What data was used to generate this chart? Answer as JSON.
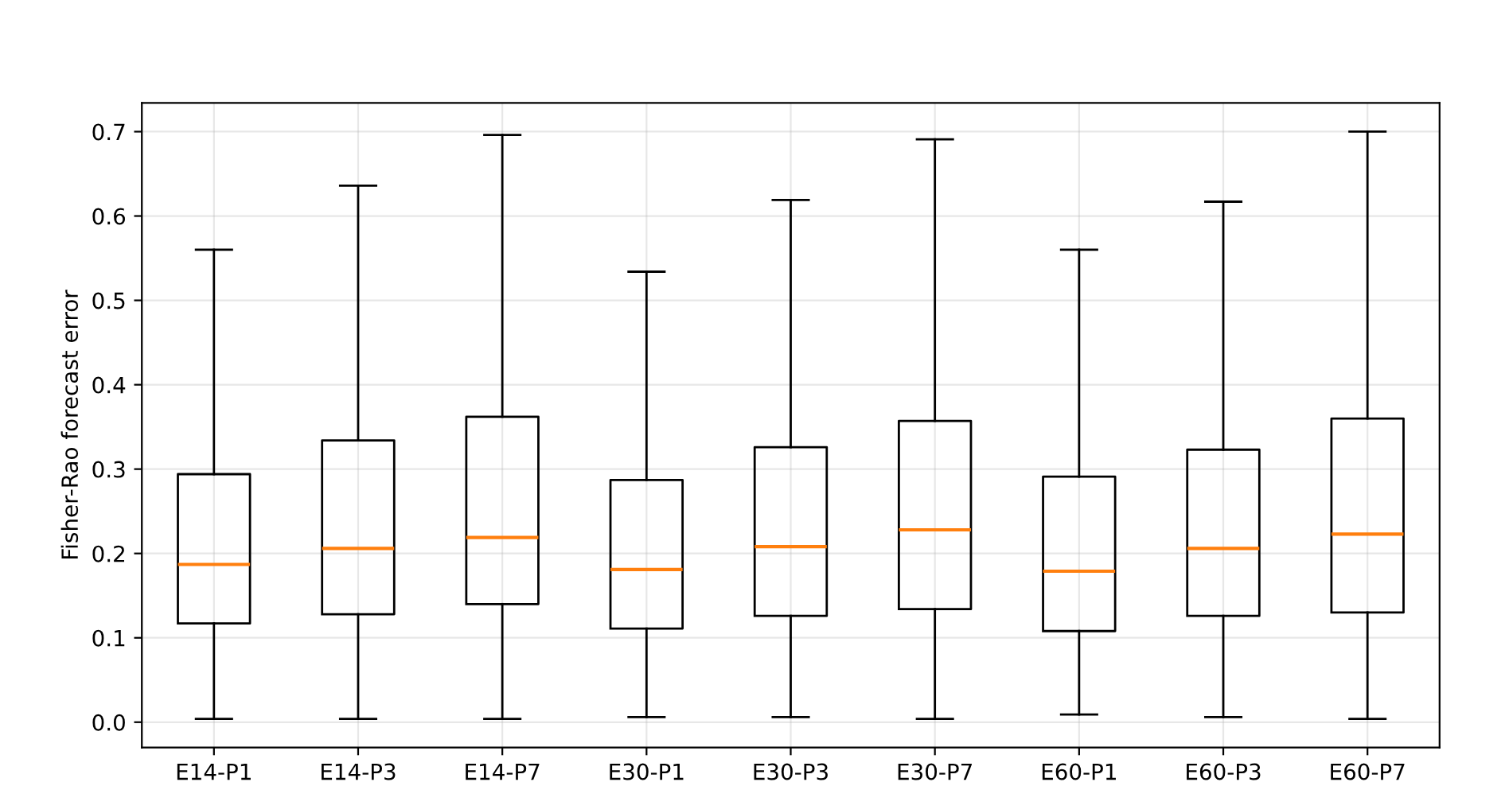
{
  "chart_data": {
    "type": "box",
    "ylabel": "Fisher-Rao forecast error",
    "categories": [
      "E14-P1",
      "E14-P3",
      "E14-P7",
      "E30-P1",
      "E30-P3",
      "E30-P7",
      "E60-P1",
      "E60-P3",
      "E60-P7"
    ],
    "boxes": [
      {
        "low": 0.004,
        "q1": 0.117,
        "median": 0.187,
        "q3": 0.294,
        "high": 0.56
      },
      {
        "low": 0.004,
        "q1": 0.128,
        "median": 0.206,
        "q3": 0.334,
        "high": 0.636
      },
      {
        "low": 0.004,
        "q1": 0.14,
        "median": 0.219,
        "q3": 0.362,
        "high": 0.696
      },
      {
        "low": 0.006,
        "q1": 0.111,
        "median": 0.181,
        "q3": 0.287,
        "high": 0.534
      },
      {
        "low": 0.006,
        "q1": 0.126,
        "median": 0.208,
        "q3": 0.326,
        "high": 0.619
      },
      {
        "low": 0.004,
        "q1": 0.134,
        "median": 0.228,
        "q3": 0.357,
        "high": 0.691
      },
      {
        "low": 0.009,
        "q1": 0.108,
        "median": 0.179,
        "q3": 0.291,
        "high": 0.56
      },
      {
        "low": 0.006,
        "q1": 0.126,
        "median": 0.206,
        "q3": 0.323,
        "high": 0.617
      },
      {
        "low": 0.004,
        "q1": 0.13,
        "median": 0.223,
        "q3": 0.36,
        "high": 0.7
      }
    ],
    "color": "#000000",
    "ylim": [
      -0.03,
      0.734
    ],
    "yticks": [
      {
        "value": 0,
        "label": "0.0"
      },
      0.1,
      0.2,
      0.3,
      0.4,
      0.5,
      0.6,
      0.7
    ],
    "grid": true
  }
}
